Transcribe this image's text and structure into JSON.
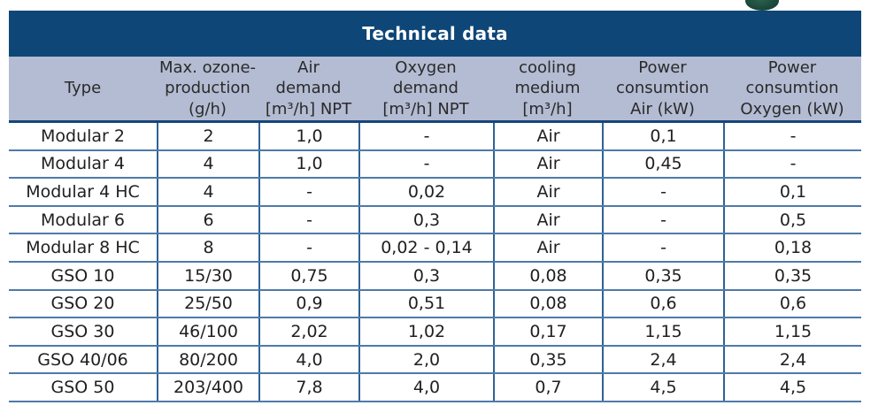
{
  "title": "Technical data",
  "colors": {
    "title_bg": "#0e4677",
    "title_text": "#ffffff",
    "subheader_bg": "#b4bcd3",
    "row_border": "#4e7aa9",
    "column_border": "#2f6295",
    "subheader_border": "#16457b",
    "corner_graphic": "#1b4a3c"
  },
  "columns": [
    {
      "label": "Type"
    },
    {
      "label": "Max. ozone-\nproduction\n(g/h)"
    },
    {
      "label": "Air\ndemand\n[m³/h] NPT"
    },
    {
      "label": "Oxygen\ndemand\n[m³/h] NPT"
    },
    {
      "label": "cooling\nmedium\n[m³/h]"
    },
    {
      "label": "Power\nconsumtion\nAir (kW)"
    },
    {
      "label": "Power\nconsumtion\nOxygen (kW)"
    }
  ],
  "rows": [
    {
      "cells": [
        "Modular 2",
        "2",
        "1,0",
        "-",
        "Air",
        "0,1",
        "-"
      ]
    },
    {
      "cells": [
        "Modular 4",
        "4",
        "1,0",
        "-",
        "Air",
        "0,45",
        "-"
      ]
    },
    {
      "cells": [
        "Modular 4 HC",
        "4",
        "-",
        "0,02",
        "Air",
        "-",
        "0,1"
      ]
    },
    {
      "cells": [
        "Modular 6",
        "6",
        "-",
        "0,3",
        "Air",
        "-",
        "0,5"
      ]
    },
    {
      "cells": [
        "Modular 8 HC",
        "8",
        "-",
        "0,02 - 0,14",
        "Air",
        "-",
        "0,18"
      ]
    },
    {
      "cells": [
        "GSO 10",
        "15/30",
        "0,75",
        "0,3",
        "0,08",
        "0,35",
        "0,35"
      ]
    },
    {
      "cells": [
        "GSO 20",
        "25/50",
        "0,9",
        "0,51",
        "0,08",
        "0,6",
        "0,6"
      ]
    },
    {
      "cells": [
        "GSO 30",
        "46/100",
        "2,02",
        "1,02",
        "0,17",
        "1,15",
        "1,15"
      ]
    },
    {
      "cells": [
        "GSO 40/06",
        "80/200",
        "4,0",
        "2,0",
        "0,35",
        "2,4",
        "2,4"
      ]
    },
    {
      "cells": [
        "GSO 50",
        "203/400",
        "7,8",
        "4,0",
        "0,7",
        "4,5",
        "4,5"
      ]
    }
  ]
}
